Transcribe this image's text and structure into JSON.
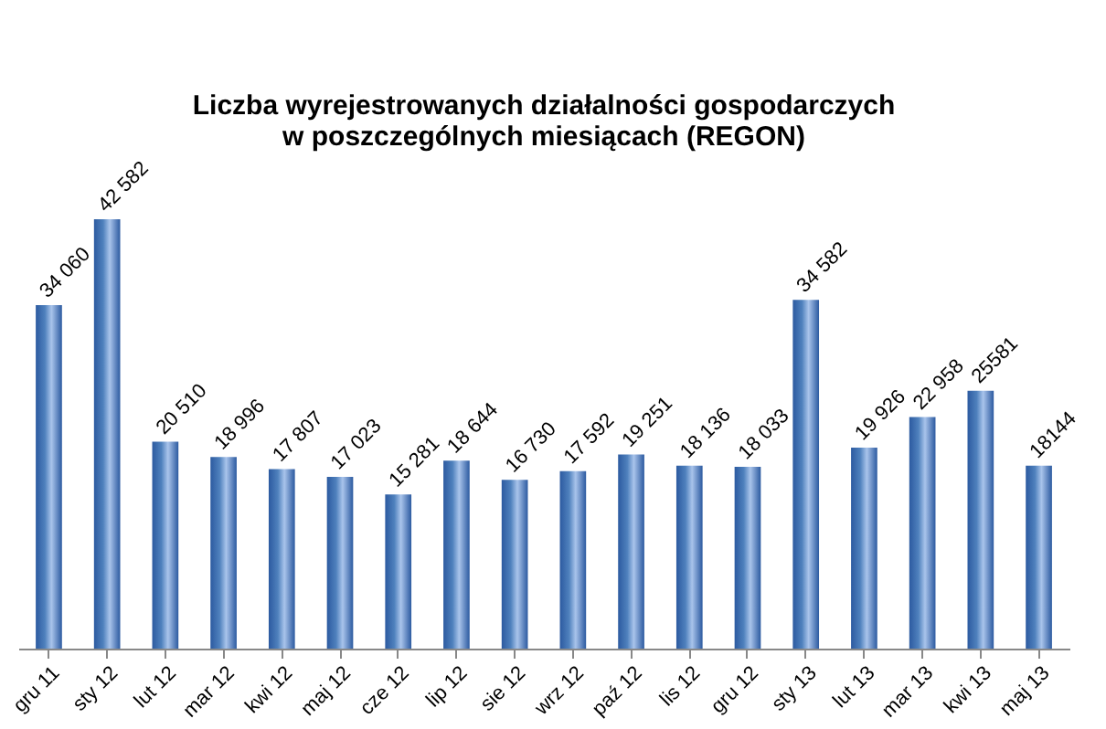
{
  "chart_data": {
    "type": "bar",
    "title": "Liczba wyrejestrowanych działalności gospodarczych\nw poszczególnych miesiącach (REGON)",
    "categories": [
      "gru 11",
      "sty 12",
      "lut 12",
      "mar 12",
      "kwi 12",
      "maj 12",
      "cze 12",
      "lip 12",
      "sie 12",
      "wrz 12",
      "paź 12",
      "lis 12",
      "gru 12",
      "sty 13",
      "lut 13",
      "mar 13",
      "kwi 13",
      "maj 13"
    ],
    "values": [
      34060,
      42582,
      20510,
      18996,
      17807,
      17023,
      15281,
      18644,
      16730,
      17592,
      19251,
      18136,
      18033,
      34582,
      19926,
      22958,
      25581,
      18144
    ],
    "value_labels": [
      "34 060",
      "42 582",
      "20 510",
      "18 996",
      "17 807",
      "17 023",
      "15 281",
      "18 644",
      "16 730",
      "17 592",
      "19 251",
      "18 136",
      "18 033",
      "34 582",
      "19 926",
      "22 958",
      "25581",
      "18144"
    ],
    "color": "#4f81bd",
    "grid": false
  }
}
